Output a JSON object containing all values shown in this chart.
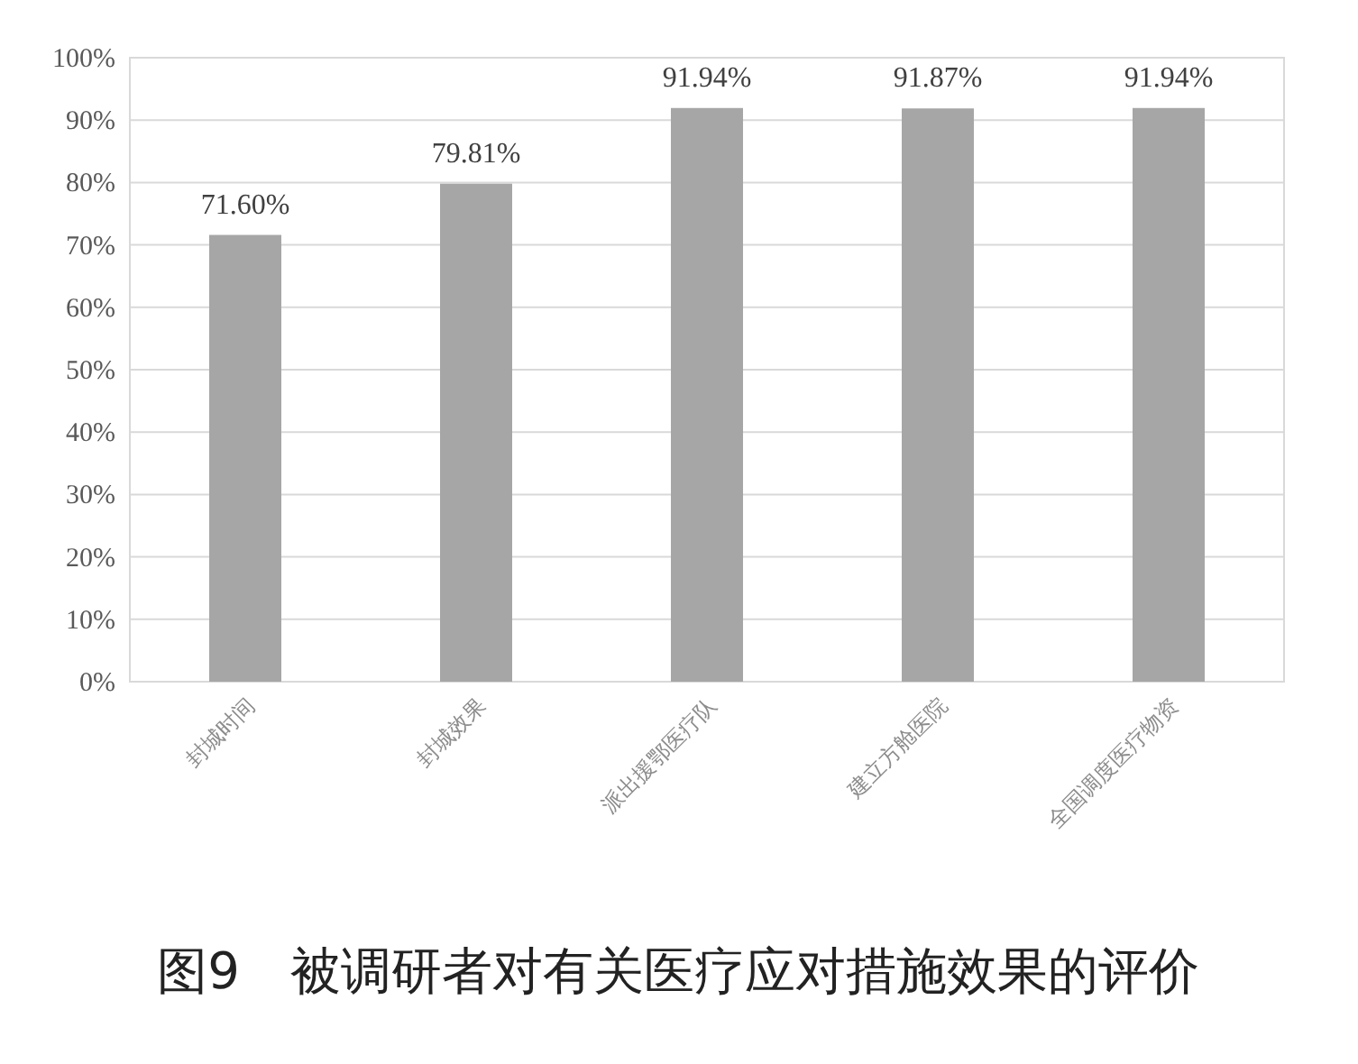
{
  "chart_data": {
    "type": "bar",
    "title": "图9　被调研者对有关医疗应对措施效果的评价",
    "categories": [
      "封城时间",
      "封城效果",
      "派出援鄂医疗队",
      "建立方舱医院",
      "全国调度医疗物资"
    ],
    "values": [
      71.6,
      79.81,
      91.94,
      91.87,
      91.94
    ],
    "value_labels": [
      "71.60%",
      "79.81%",
      "91.94%",
      "91.87%",
      "91.94%"
    ],
    "color": "#a6a6a6",
    "ylim": [
      0,
      100
    ],
    "yticks": [
      {
        "value": 0,
        "label": "0%"
      },
      {
        "value": 10,
        "label": "10%"
      },
      {
        "value": 20,
        "label": "20%"
      },
      {
        "value": 30,
        "label": "30%"
      },
      {
        "value": 40,
        "label": "40%"
      },
      {
        "value": 50,
        "label": "50%"
      },
      {
        "value": 60,
        "label": "60%"
      },
      {
        "value": 70,
        "label": "70%"
      },
      {
        "value": 80,
        "label": "80%"
      },
      {
        "value": 90,
        "label": "90%"
      },
      {
        "value": 100,
        "label": "100%"
      }
    ],
    "grid": "y"
  }
}
